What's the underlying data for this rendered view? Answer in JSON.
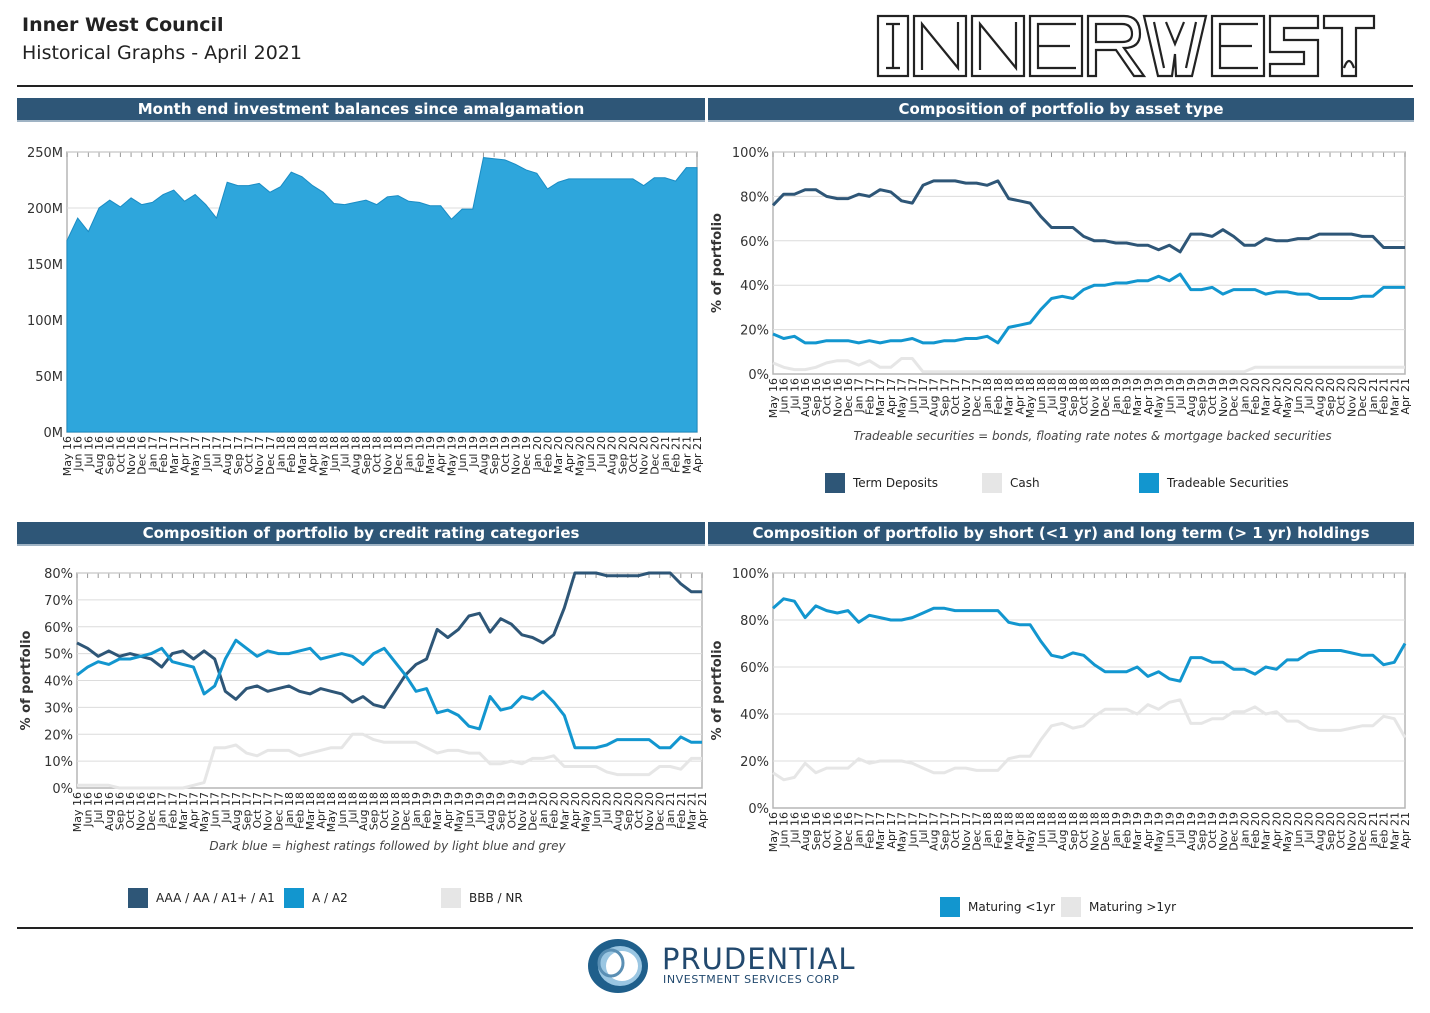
{
  "header": {
    "title": "Inner West Council",
    "subtitle": "Historical Graphs - April 2021",
    "logo_text": "INNER WEST"
  },
  "footer": {
    "company": "PRUDENTIAL",
    "tagline": "INVESTMENT SERVICES CORP"
  },
  "colors": {
    "dark": "#2e5677",
    "light": "#1296cf",
    "grey": "#e6e6e6",
    "area": "#2ea6dc",
    "band": "#2e5677"
  },
  "chart_data": [
    {
      "id": "balances",
      "type": "area",
      "title": "Month end investment balances since amalgamation",
      "ytick_labels": [
        "0M",
        "50M",
        "100M",
        "150M",
        "200M",
        "250M"
      ],
      "ylim": [
        0,
        250
      ],
      "x": [
        "May 16",
        "Jun 16",
        "Jul 16",
        "Aug 16",
        "Sep 16",
        "Oct 16",
        "Nov 16",
        "Dec 16",
        "Jan 17",
        "Feb 17",
        "Mar 17",
        "Apr 17",
        "May 17",
        "Jun 17",
        "Jul 17",
        "Aug 17",
        "Sep 17",
        "Oct 17",
        "Nov 17",
        "Dec 17",
        "Jan 18",
        "Feb 18",
        "Mar 18",
        "Apr 18",
        "May 18",
        "Jun 18",
        "Jul 18",
        "Aug 18",
        "Sep 18",
        "Oct 18",
        "Nov 18",
        "Dec 18",
        "Jan 19",
        "Feb 19",
        "Mar 19",
        "Apr 19",
        "May 19",
        "Jun 19",
        "Jul 19",
        "Aug 19",
        "Sep 19",
        "Oct 19",
        "Nov 19",
        "Dec 19",
        "Jan 20",
        "Feb 20",
        "Mar 20",
        "Apr 20",
        "May 20",
        "Jun 20",
        "Jul 20",
        "Aug 20",
        "Sep 20",
        "Oct 20",
        "Nov 20",
        "Dec 20",
        "Jan 21",
        "Feb 21",
        "Mar 21",
        "Apr 21"
      ],
      "series": [
        {
          "values": [
            171,
            191,
            179,
            200,
            207,
            201,
            209,
            203,
            205,
            212,
            216,
            206,
            212,
            203,
            191,
            223,
            220,
            220,
            222,
            214,
            219,
            232,
            228,
            220,
            214,
            204,
            203,
            205,
            207,
            203,
            210,
            211,
            206,
            205,
            202,
            202,
            190,
            199,
            199,
            245,
            244,
            243,
            239,
            234,
            231,
            217,
            223,
            226,
            226,
            226,
            226,
            226,
            226,
            226,
            220,
            227,
            227,
            224,
            236,
            236
          ]
        }
      ]
    },
    {
      "id": "asset",
      "type": "line",
      "title": "Composition of portfolio by asset type",
      "ylabel": "% of portfolio",
      "ytick_labels": [
        "0%",
        "20%",
        "40%",
        "60%",
        "80%",
        "100%"
      ],
      "ylim": [
        0,
        100
      ],
      "note": "Tradeable securities = bonds, floating rate notes & mortgage backed securities",
      "x": [
        "May 16",
        "Jun 16",
        "Jul 16",
        "Aug 16",
        "Sep 16",
        "Oct 16",
        "Nov 16",
        "Dec 16",
        "Jan 17",
        "Feb 17",
        "Mar 17",
        "Apr 17",
        "May 17",
        "Jun 17",
        "Jul 17",
        "Aug 17",
        "Sep 17",
        "Oct 17",
        "Nov 17",
        "Dec 17",
        "Jan 18",
        "Feb 18",
        "Mar 18",
        "Apr 18",
        "May 18",
        "Jun 18",
        "Jul 18",
        "Aug 18",
        "Sep 18",
        "Oct 18",
        "Nov 18",
        "Dec 18",
        "Jan 19",
        "Feb 19",
        "Mar 19",
        "Apr 19",
        "May 19",
        "Jun 19",
        "Jul 19",
        "Aug 19",
        "Sep 19",
        "Oct 19",
        "Nov 19",
        "Dec 19",
        "Jan 20",
        "Feb 20",
        "Mar 20",
        "Apr 20",
        "May 20",
        "Jun 20",
        "Jul 20",
        "Aug 20",
        "Sep 20",
        "Oct 20",
        "Nov 20",
        "Dec 20",
        "Jan 21",
        "Feb 21",
        "Mar 21",
        "Apr 21"
      ],
      "series": [
        {
          "name": "Term Deposits",
          "color": "#2e5677",
          "values": [
            76,
            81,
            81,
            83,
            83,
            80,
            79,
            79,
            81,
            80,
            83,
            82,
            78,
            77,
            85,
            87,
            87,
            87,
            86,
            86,
            85,
            87,
            79,
            78,
            77,
            71,
            66,
            66,
            66,
            62,
            60,
            60,
            59,
            59,
            58,
            58,
            56,
            58,
            55,
            63,
            63,
            62,
            65,
            62,
            58,
            58,
            61,
            60,
            60,
            61,
            61,
            63,
            63,
            63,
            63,
            62,
            62,
            57,
            57,
            57
          ]
        },
        {
          "name": "Cash",
          "color": "#e6e6e6",
          "values": [
            5,
            3,
            2,
            2,
            3,
            5,
            6,
            6,
            4,
            6,
            3,
            3,
            7,
            7,
            1,
            1,
            1,
            1,
            1,
            1,
            1,
            1,
            1,
            1,
            1,
            1,
            1,
            1,
            1,
            1,
            1,
            1,
            1,
            1,
            1,
            1,
            1,
            1,
            1,
            1,
            1,
            1,
            1,
            1,
            1,
            3,
            3,
            3,
            3,
            3,
            3,
            3,
            3,
            3,
            3,
            3,
            3,
            3,
            3,
            3
          ]
        },
        {
          "name": "Tradeable Securities",
          "color": "#1296cf",
          "values": [
            18,
            16,
            17,
            14,
            14,
            15,
            15,
            15,
            14,
            15,
            14,
            15,
            15,
            16,
            14,
            14,
            15,
            15,
            16,
            16,
            17,
            14,
            21,
            22,
            23,
            29,
            34,
            35,
            34,
            38,
            40,
            40,
            41,
            41,
            42,
            42,
            44,
            42,
            45,
            38,
            38,
            39,
            36,
            38,
            38,
            38,
            36,
            37,
            37,
            36,
            36,
            34,
            34,
            34,
            34,
            35,
            35,
            39,
            39,
            39
          ]
        }
      ]
    },
    {
      "id": "credit",
      "type": "line",
      "title": "Composition of portfolio by credit rating categories",
      "ylabel": "% of portfolio",
      "ytick_labels": [
        "0%",
        "10%",
        "20%",
        "30%",
        "40%",
        "50%",
        "60%",
        "70%",
        "80%"
      ],
      "ylim": [
        0,
        80
      ],
      "note": "Dark blue = highest ratings followed by light blue and grey",
      "x": [
        "May 16",
        "Jun 16",
        "Jul 16",
        "Aug 16",
        "Sep 16",
        "Oct 16",
        "Nov 16",
        "Dec 16",
        "Jan 17",
        "Feb 17",
        "Mar 17",
        "Apr 17",
        "May 17",
        "Jun 17",
        "Jul 17",
        "Aug 17",
        "Sep 17",
        "Oct 17",
        "Nov 17",
        "Dec 17",
        "Jan 18",
        "Feb 18",
        "Mar 18",
        "Apr 18",
        "May 18",
        "Jun 18",
        "Jul 18",
        "Aug 18",
        "Sep 18",
        "Oct 18",
        "Nov 18",
        "Dec 18",
        "Jan 19",
        "Feb 19",
        "Mar 19",
        "Apr 19",
        "May 19",
        "Jun 19",
        "Jul 19",
        "Aug 19",
        "Sep 19",
        "Oct 19",
        "Nov 19",
        "Dec 19",
        "Jan 20",
        "Feb 20",
        "Mar 20",
        "Apr 20",
        "May 20",
        "Jun 20",
        "Jul 20",
        "Aug 20",
        "Sep 20",
        "Oct 20",
        "Nov 20",
        "Dec 20",
        "Jan 21",
        "Feb 21",
        "Mar 21",
        "Apr 21"
      ],
      "series": [
        {
          "name": "AAA / AA / A1+ / A1",
          "color": "#2e5677",
          "values": [
            54,
            52,
            49,
            51,
            49,
            50,
            49,
            48,
            45,
            50,
            51,
            48,
            51,
            48,
            36,
            33,
            37,
            38,
            36,
            37,
            38,
            36,
            35,
            37,
            36,
            35,
            32,
            34,
            31,
            30,
            36,
            42,
            46,
            48,
            59,
            56,
            59,
            64,
            65,
            58,
            63,
            61,
            57,
            56,
            54,
            57,
            67,
            80,
            80,
            80,
            79,
            79,
            79,
            79,
            80,
            80,
            80,
            76,
            73,
            73
          ]
        },
        {
          "name": "A / A2",
          "color": "#1296cf",
          "values": [
            42,
            45,
            47,
            46,
            48,
            48,
            49,
            50,
            52,
            47,
            46,
            45,
            35,
            38,
            48,
            55,
            52,
            49,
            51,
            50,
            50,
            51,
            52,
            48,
            49,
            50,
            49,
            46,
            50,
            52,
            47,
            42,
            36,
            37,
            28,
            29,
            27,
            23,
            22,
            34,
            29,
            30,
            34,
            33,
            36,
            32,
            27,
            15,
            15,
            15,
            16,
            18,
            18,
            18,
            18,
            15,
            15,
            19,
            17,
            17
          ]
        },
        {
          "name": "BBB / NR",
          "color": "#e6e6e6",
          "values": [
            1,
            1,
            1,
            1,
            0,
            0,
            0,
            0,
            0,
            0,
            0,
            1,
            2,
            15,
            15,
            16,
            13,
            12,
            14,
            14,
            14,
            12,
            13,
            14,
            15,
            15,
            20,
            20,
            18,
            17,
            17,
            17,
            17,
            15,
            13,
            14,
            14,
            13,
            13,
            9,
            9,
            10,
            9,
            11,
            11,
            12,
            8,
            8,
            8,
            8,
            6,
            5,
            5,
            5,
            5,
            8,
            8,
            7,
            11,
            11
          ]
        }
      ]
    },
    {
      "id": "term",
      "type": "line",
      "title": "Composition of portfolio by short (<1 yr) and long term (> 1 yr) holdings",
      "ylabel": "% of portfolio",
      "ytick_labels": [
        "0%",
        "20%",
        "40%",
        "60%",
        "80%",
        "100%"
      ],
      "ylim": [
        0,
        100
      ],
      "x": [
        "May 16",
        "Jun 16",
        "Jul 16",
        "Aug 16",
        "Sep 16",
        "Oct 16",
        "Nov 16",
        "Dec 16",
        "Jan 17",
        "Feb 17",
        "Mar 17",
        "Apr 17",
        "May 17",
        "Jun 17",
        "Jul 17",
        "Aug 17",
        "Sep 17",
        "Oct 17",
        "Nov 17",
        "Dec 17",
        "Jan 18",
        "Feb 18",
        "Mar 18",
        "Apr 18",
        "May 18",
        "Jun 18",
        "Jul 18",
        "Aug 18",
        "Sep 18",
        "Oct 18",
        "Nov 18",
        "Dec 18",
        "Jan 19",
        "Feb 19",
        "Mar 19",
        "Apr 19",
        "May 19",
        "Jun 19",
        "Jul 19",
        "Aug 19",
        "Sep 19",
        "Oct 19",
        "Nov 19",
        "Dec 19",
        "Jan 20",
        "Feb 20",
        "Mar 20",
        "Apr 20",
        "May 20",
        "Jun 20",
        "Jul 20",
        "Aug 20",
        "Sep 20",
        "Oct 20",
        "Nov 20",
        "Dec 20",
        "Jan 21",
        "Feb 21",
        "Mar 21",
        "Apr 21"
      ],
      "series": [
        {
          "name": "Maturing <1yr",
          "color": "#1296cf",
          "values": [
            85,
            89,
            88,
            81,
            86,
            84,
            83,
            84,
            79,
            82,
            81,
            80,
            80,
            81,
            83,
            85,
            85,
            84,
            84,
            84,
            84,
            84,
            79,
            78,
            78,
            71,
            65,
            64,
            66,
            65,
            61,
            58,
            58,
            58,
            60,
            56,
            58,
            55,
            54,
            64,
            64,
            62,
            62,
            59,
            59,
            57,
            60,
            59,
            63,
            63,
            66,
            67,
            67,
            67,
            66,
            65,
            65,
            61,
            62,
            70
          ]
        },
        {
          "name": "Maturing >1yr",
          "color": "#e6e6e6",
          "values": [
            15,
            12,
            13,
            19,
            15,
            17,
            17,
            17,
            21,
            19,
            20,
            20,
            20,
            19,
            17,
            15,
            15,
            17,
            17,
            16,
            16,
            16,
            21,
            22,
            22,
            29,
            35,
            36,
            34,
            35,
            39,
            42,
            42,
            42,
            40,
            44,
            42,
            45,
            46,
            36,
            36,
            38,
            38,
            41,
            41,
            43,
            40,
            41,
            37,
            37,
            34,
            33,
            33,
            33,
            34,
            35,
            35,
            39,
            38,
            30
          ]
        }
      ]
    }
  ]
}
